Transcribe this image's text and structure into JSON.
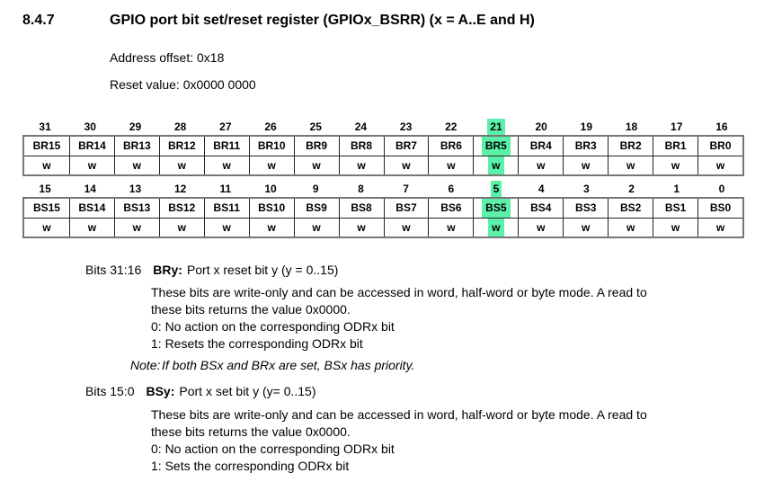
{
  "page": {
    "background": "#ffffff",
    "text_color": "#000000"
  },
  "section": {
    "number": "8.4.7",
    "title": "GPIO port bit set/reset register (GPIOx_BSRR) (x = A..E and H)"
  },
  "register_info": {
    "address_offset": "Address offset: 0x18",
    "reset_value": "Reset value: 0x0000 0000"
  },
  "register_table": {
    "highlight_color": "#5bf1a9",
    "rows": [
      {
        "bits": [
          "31",
          "30",
          "29",
          "28",
          "27",
          "26",
          "25",
          "24",
          "23",
          "22",
          "21",
          "20",
          "19",
          "18",
          "17",
          "16"
        ],
        "fields": [
          "BR15",
          "BR14",
          "BR13",
          "BR12",
          "BR11",
          "BR10",
          "BR9",
          "BR8",
          "BR7",
          "BR6",
          "BR5",
          "BR4",
          "BR3",
          "BR2",
          "BR1",
          "BR0"
        ],
        "access": [
          "w",
          "w",
          "w",
          "w",
          "w",
          "w",
          "w",
          "w",
          "w",
          "w",
          "w",
          "w",
          "w",
          "w",
          "w",
          "w"
        ],
        "highlight_index": 10
      },
      {
        "bits": [
          "15",
          "14",
          "13",
          "12",
          "11",
          "10",
          "9",
          "8",
          "7",
          "6",
          "5",
          "4",
          "3",
          "2",
          "1",
          "0"
        ],
        "fields": [
          "BS15",
          "BS14",
          "BS13",
          "BS12",
          "BS11",
          "BS10",
          "BS9",
          "BS8",
          "BS7",
          "BS6",
          "BS5",
          "BS4",
          "BS3",
          "BS2",
          "BS1",
          "BS0"
        ],
        "access": [
          "w",
          "w",
          "w",
          "w",
          "w",
          "w",
          "w",
          "w",
          "w",
          "w",
          "w",
          "w",
          "w",
          "w",
          "w",
          "w"
        ],
        "highlight_index": 10
      }
    ]
  },
  "descriptions": [
    {
      "bits_label": "Bits 31:16",
      "term": "BRy:",
      "definition": "Port x reset bit y (y = 0..15)",
      "body_lines": [
        "These bits are write-only and can be accessed in word, half-word or byte mode. A read to",
        "these bits returns the value 0x0000.",
        "0: No action on the corresponding ODRx bit",
        "1: Resets the corresponding ODRx bit"
      ],
      "note_label": "Note:",
      "note_text": "If both BSx and BRx are set, BSx has priority."
    },
    {
      "bits_label": "Bits 15:0",
      "term": "BSy:",
      "definition": "Port x set bit y (y= 0..15)",
      "body_lines": [
        "These bits are write-only and can be accessed in word, half-word or byte mode. A read to",
        "these bits returns the value 0x0000.",
        "0: No action on the corresponding ODRx bit",
        "1: Sets the corresponding ODRx bit"
      ]
    }
  ]
}
